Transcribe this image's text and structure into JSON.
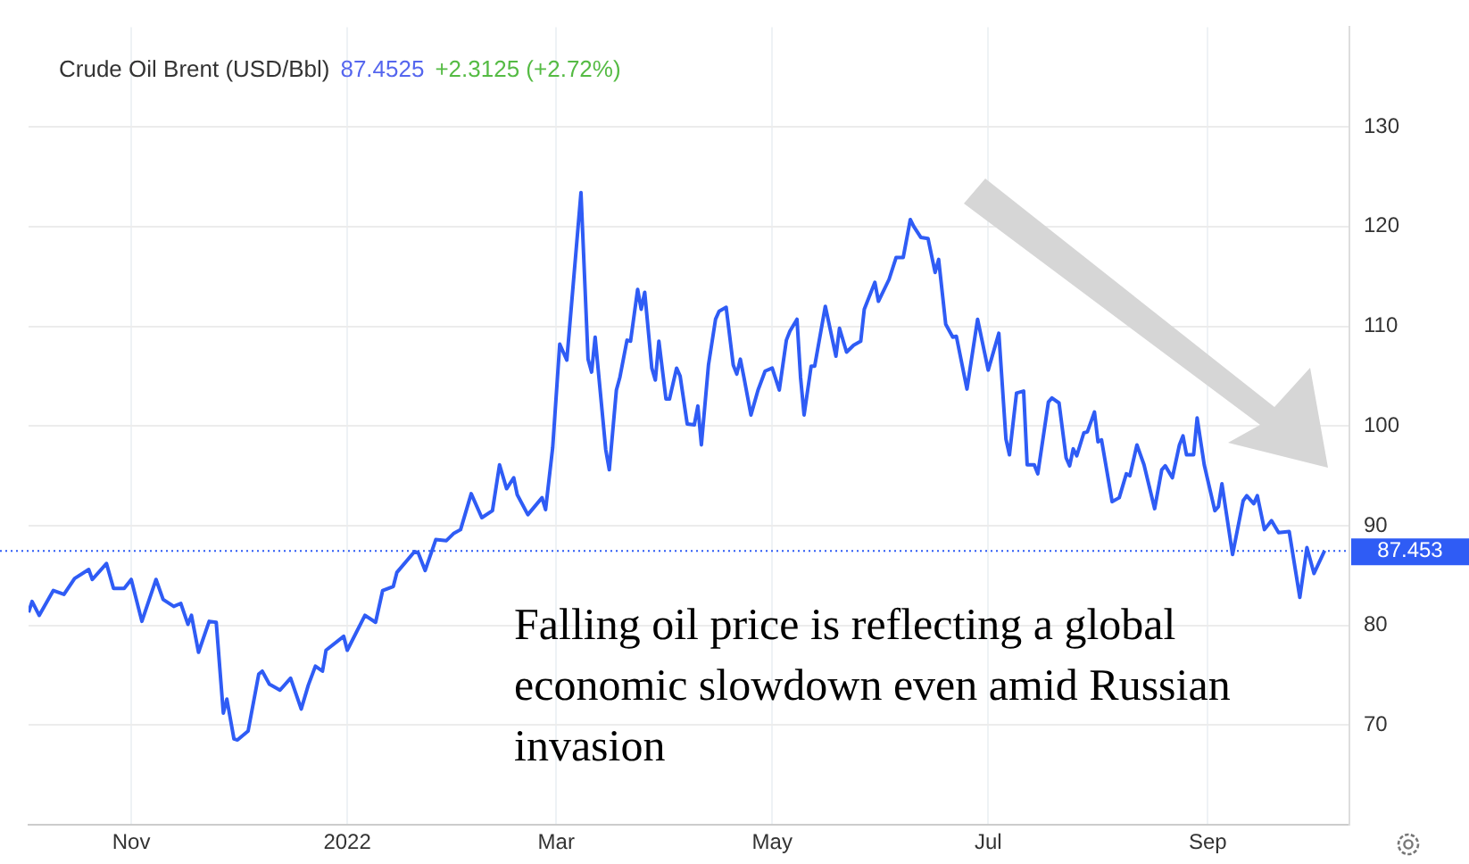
{
  "chart_data": {
    "type": "line",
    "title": "Crude Oil Brent (USD/Bbl)",
    "annotations": [
      "87.4525",
      "+2.3125 (+2.72%)",
      "Falling oil price is reflecting a global economic slowdown even amid Russian invasion"
    ],
    "x": [
      "2021-10-03",
      "2021-10-04",
      "2021-10-06",
      "2021-10-10",
      "2021-10-13",
      "2021-10-16",
      "2021-10-20",
      "2021-10-21",
      "2021-10-25",
      "2021-10-27",
      "2021-10-30",
      "2021-11-01",
      "2021-11-04",
      "2021-11-08",
      "2021-11-10",
      "2021-11-13",
      "2021-11-15",
      "2021-11-17",
      "2021-11-18",
      "2021-11-20",
      "2021-11-23",
      "2021-11-25",
      "2021-11-27",
      "2021-11-28",
      "2021-11-30",
      "2021-12-01",
      "2021-12-04",
      "2021-12-07",
      "2021-12-08",
      "2021-12-10",
      "2021-12-13",
      "2021-12-16",
      "2021-12-19",
      "2021-12-21",
      "2021-12-23",
      "2021-12-25",
      "2021-12-26",
      "2021-12-31",
      "2022-01-01",
      "2022-01-06",
      "2022-01-09",
      "2022-01-11",
      "2022-01-14",
      "2022-01-15",
      "2022-01-20",
      "2022-01-21",
      "2022-01-23",
      "2022-01-26",
      "2022-01-29",
      "2022-01-31",
      "2022-02-02",
      "2022-02-05",
      "2022-02-08",
      "2022-02-11",
      "2022-02-13",
      "2022-02-15",
      "2022-02-17",
      "2022-02-18",
      "2022-02-21",
      "2022-02-25",
      "2022-02-26",
      "2022-02-28",
      "2022-03-02",
      "2022-03-04",
      "2022-03-08",
      "2022-03-10",
      "2022-03-11",
      "2022-03-12",
      "2022-03-15",
      "2022-03-16",
      "2022-03-18",
      "2022-03-19",
      "2022-03-21",
      "2022-03-22",
      "2022-03-24",
      "2022-03-25",
      "2022-03-26",
      "2022-03-28",
      "2022-03-29",
      "2022-03-30",
      "2022-04-01",
      "2022-04-02",
      "2022-04-04",
      "2022-04-05",
      "2022-04-07",
      "2022-04-09",
      "2022-04-10",
      "2022-04-11",
      "2022-04-13",
      "2022-04-15",
      "2022-04-16",
      "2022-04-18",
      "2022-04-20",
      "2022-04-21",
      "2022-04-22",
      "2022-04-23",
      "2022-04-25",
      "2022-04-27",
      "2022-04-29",
      "2022-05-01",
      "2022-05-03",
      "2022-05-05",
      "2022-05-06",
      "2022-05-08",
      "2022-05-09",
      "2022-05-10",
      "2022-05-12",
      "2022-05-13",
      "2022-05-16",
      "2022-05-19",
      "2022-05-20",
      "2022-05-22",
      "2022-05-24",
      "2022-05-26",
      "2022-05-27",
      "2022-05-30",
      "2022-05-31",
      "2022-06-03",
      "2022-06-05",
      "2022-06-07",
      "2022-06-09",
      "2022-06-10",
      "2022-06-12",
      "2022-06-14",
      "2022-06-16",
      "2022-06-17",
      "2022-06-19",
      "2022-06-21",
      "2022-06-22",
      "2022-06-25",
      "2022-06-28",
      "2022-07-01",
      "2022-07-04",
      "2022-07-06",
      "2022-07-07",
      "2022-07-09",
      "2022-07-11",
      "2022-07-12",
      "2022-07-14",
      "2022-07-15",
      "2022-07-18",
      "2022-07-19",
      "2022-07-21",
      "2022-07-23",
      "2022-07-24",
      "2022-07-25",
      "2022-07-26",
      "2022-07-28",
      "2022-07-29",
      "2022-07-31",
      "2022-08-01",
      "2022-08-02",
      "2022-08-05",
      "2022-08-07",
      "2022-08-09",
      "2022-08-10",
      "2022-08-12",
      "2022-08-14",
      "2022-08-17",
      "2022-08-19",
      "2022-08-20",
      "2022-08-22",
      "2022-08-24",
      "2022-08-25",
      "2022-08-26",
      "2022-08-28",
      "2022-08-29",
      "2022-08-31",
      "2022-09-03",
      "2022-09-04",
      "2022-09-05",
      "2022-09-08",
      "2022-09-11",
      "2022-09-12",
      "2022-09-14",
      "2022-09-15",
      "2022-09-17",
      "2022-09-19",
      "2022-09-21",
      "2022-09-24",
      "2022-09-27",
      "2022-09-29",
      "2022-10-01",
      "2022-10-04"
    ],
    "series": [
      {
        "color": "#2f5cf5",
        "values": [
          81.3,
          82.4,
          81.0,
          83.5,
          83.1,
          84.7,
          85.6,
          84.6,
          86.2,
          83.7,
          83.7,
          84.6,
          80.4,
          84.6,
          82.6,
          81.9,
          82.2,
          80.1,
          81.0,
          77.3,
          80.4,
          80.3,
          71.2,
          72.6,
          68.6,
          68.5,
          69.4,
          75.1,
          75.4,
          74.1,
          73.5,
          74.7,
          71.6,
          74.0,
          75.9,
          75.4,
          77.5,
          78.9,
          77.5,
          81.0,
          80.3,
          83.5,
          83.9,
          85.3,
          87.4,
          87.3,
          85.5,
          88.6,
          88.5,
          89.2,
          89.6,
          93.2,
          90.8,
          91.5,
          96.1,
          93.7,
          94.8,
          93.1,
          91.1,
          92.8,
          91.6,
          97.8,
          108.2,
          106.6,
          123.4,
          106.7,
          105.4,
          108.9,
          97.6,
          95.6,
          103.6,
          104.9,
          108.6,
          108.5,
          113.7,
          111.7,
          113.4,
          105.8,
          104.6,
          108.5,
          102.7,
          102.7,
          105.8,
          105.0,
          100.2,
          100.1,
          102.0,
          98.1,
          106.1,
          110.7,
          111.5,
          111.9,
          106.1,
          105.2,
          106.7,
          104.9,
          101.1,
          103.6,
          105.5,
          105.8,
          103.6,
          108.6,
          109.5,
          110.7,
          104.9,
          101.1,
          106.0,
          106.0,
          112.0,
          107.0,
          109.8,
          107.4,
          108.1,
          108.5,
          111.7,
          114.4,
          112.5,
          114.7,
          116.9,
          116.9,
          120.7,
          120.0,
          118.9,
          118.8,
          115.4,
          116.7,
          110.2,
          108.9,
          109.0,
          103.7,
          110.7,
          105.6,
          109.3,
          98.7,
          97.1,
          103.3,
          103.5,
          96.1,
          96.1,
          95.2,
          102.4,
          102.8,
          102.3,
          96.8,
          96.0,
          97.7,
          97.0,
          99.3,
          99.4,
          101.4,
          98.4,
          98.6,
          92.4,
          92.8,
          95.2,
          95.0,
          98.1,
          96.1,
          91.7,
          95.6,
          96.0,
          94.8,
          98.1,
          99.0,
          97.1,
          97.1,
          100.8,
          96.1,
          91.5,
          91.9,
          94.2,
          87.1,
          92.5,
          93.0,
          92.2,
          93.0,
          89.6,
          90.5,
          89.3,
          89.4,
          82.8,
          87.8,
          85.2,
          87.5
        ]
      }
    ],
    "xlim": [
      "2021-10-03",
      "2022-10-11"
    ],
    "xticks": [
      {
        "value": "2021-11-01",
        "label": "Nov"
      },
      {
        "value": "2022-01-01",
        "label": "2022"
      },
      {
        "value": "2022-03-01",
        "label": "Mar"
      },
      {
        "value": "2022-05-01",
        "label": "May"
      },
      {
        "value": "2022-07-01",
        "label": "Jul"
      },
      {
        "value": "2022-09-01",
        "label": "Sep"
      }
    ],
    "ylim": [
      60,
      140
    ],
    "yticks": [
      70,
      80,
      90,
      100,
      110,
      120,
      130
    ],
    "ref_lines": [
      {
        "axis": "y",
        "value": 87.4525,
        "label": "87.453",
        "color": "#2f5cf5",
        "line_style": "dotted"
      }
    ],
    "grid": true,
    "marker": "none",
    "line_style": "solid"
  }
}
